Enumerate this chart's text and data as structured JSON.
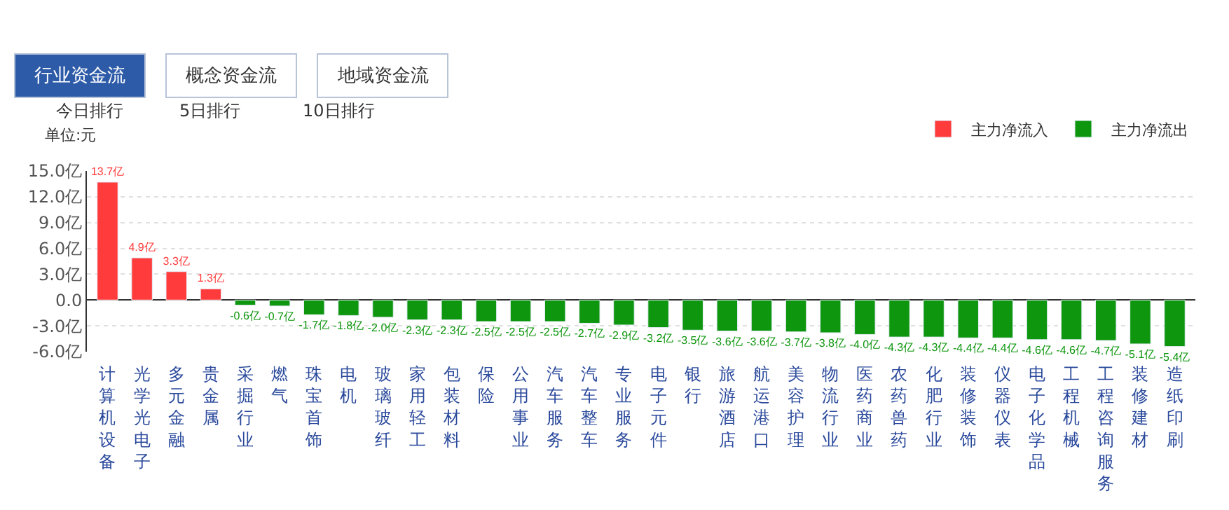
{
  "chart_data": {
    "type": "bar",
    "ylabel": "单位:元",
    "annotations": [
      "行业资金流",
      "概念资金流",
      "地域资金流",
      "今日排行",
      "5日排行",
      "10日排行"
    ],
    "categories": [
      "计算机设备",
      "光学光电子",
      "多元金融",
      "贵金属",
      "采掘行业",
      "燃气",
      "珠宝首饰",
      "电机",
      "玻璃玻纤",
      "家用轻工",
      "包装材料",
      "保险",
      "公用事业",
      "汽车服务",
      "汽车整车",
      "专业服务",
      "电子元件",
      "银行",
      "旅游酒店",
      "航运港口",
      "美容护理",
      "物流行业",
      "医药商业",
      "农药兽药",
      "化肥行业",
      "装修装饰",
      "仪器仪表",
      "电子化学品",
      "工程机械",
      "工程咨询服务",
      "装修建材",
      "造纸印刷"
    ],
    "series": [
      {
        "name": "主力净流入",
        "color": "#ff3b3b",
        "values": [
          13.7,
          4.9,
          3.3,
          1.3,
          null,
          null,
          null,
          null,
          null,
          null,
          null,
          null,
          null,
          null,
          null,
          null,
          null,
          null,
          null,
          null,
          null,
          null,
          null,
          null,
          null,
          null,
          null,
          null,
          null,
          null,
          null,
          null
        ],
        "value_labels": [
          "13.7亿",
          "4.9亿",
          "3.3亿",
          "1.3亿",
          null,
          null,
          null,
          null,
          null,
          null,
          null,
          null,
          null,
          null,
          null,
          null,
          null,
          null,
          null,
          null,
          null,
          null,
          null,
          null,
          null,
          null,
          null,
          null,
          null,
          null,
          null,
          null
        ]
      },
      {
        "name": "主力净流出",
        "color": "#0e960e",
        "values": [
          null,
          null,
          null,
          null,
          -0.6,
          -0.7,
          -1.7,
          -1.8,
          -2.0,
          -2.3,
          -2.3,
          -2.5,
          -2.5,
          -2.5,
          -2.7,
          -2.9,
          -3.2,
          -3.5,
          -3.6,
          -3.6,
          -3.7,
          -3.8,
          -4.0,
          -4.3,
          -4.3,
          -4.4,
          -4.4,
          -4.6,
          -4.6,
          -4.7,
          -5.1,
          -5.4
        ],
        "value_labels": [
          null,
          null,
          null,
          null,
          "-0.6亿",
          "-0.7亿",
          "-1.7亿",
          "-1.8亿",
          "-2.0亿",
          "-2.3亿",
          "-2.3亿",
          "-2.5亿",
          "-2.5亿",
          "-2.5亿",
          "-2.7亿",
          "-2.9亿",
          "-3.2亿",
          "-3.5亿",
          "-3.6亿",
          "-3.6亿",
          "-3.7亿",
          "-3.8亿",
          "-4.0亿",
          "-4.3亿",
          "-4.3亿",
          "-4.4亿",
          "-4.4亿",
          "-4.6亿",
          "-4.6亿",
          "-4.7亿",
          "-5.1亿",
          "-5.4亿"
        ]
      }
    ],
    "ylim": [
      -6,
      15
    ],
    "yticks": [
      {
        "value": 15,
        "label": "15.0亿"
      },
      {
        "value": 12,
        "label": "12.0亿"
      },
      {
        "value": 9,
        "label": "9.0亿"
      },
      {
        "value": 6,
        "label": "6.0亿"
      },
      {
        "value": 3,
        "label": "3.0亿"
      },
      {
        "value": 0,
        "label": "0.0"
      },
      {
        "value": -3,
        "label": "-3.0亿"
      },
      {
        "value": -6,
        "label": "-6.0亿"
      }
    ],
    "grid": "y",
    "legend": "top right"
  }
}
